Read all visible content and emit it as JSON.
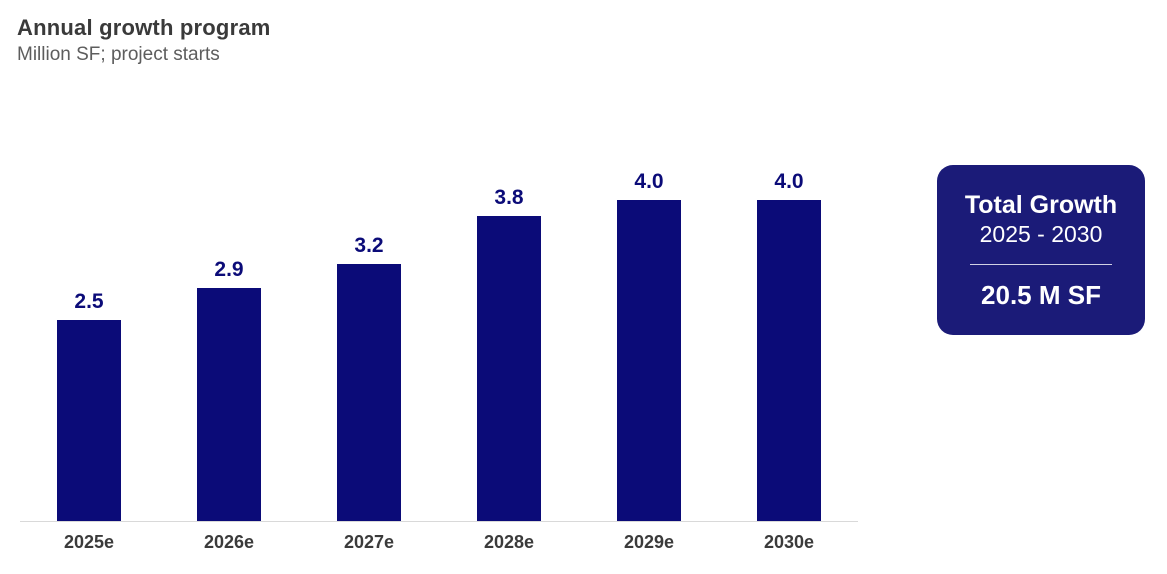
{
  "header": {
    "title": "Annual growth program",
    "subtitle": "Million SF; project starts"
  },
  "chart_data": {
    "type": "bar",
    "title": "Annual growth program",
    "subtitle": "Million SF; project starts",
    "categories": [
      "2025e",
      "2026e",
      "2027e",
      "2028e",
      "2029e",
      "2030e"
    ],
    "values": [
      2.5,
      2.9,
      3.2,
      3.8,
      4.0,
      4.0
    ],
    "value_labels": [
      "2.5",
      "2.9",
      "3.2",
      "3.8",
      "4.0",
      "4.0"
    ],
    "xlabel": "",
    "ylabel": "Million SF (project starts)",
    "ylim": [
      0,
      4.4
    ],
    "grid": false,
    "legend": "none",
    "y_axis_shown": false,
    "bar_color": "#0b0b78",
    "value_label_color": "#0b0b78",
    "tick_label_color": "#3b3b3b",
    "axis_line_color": "#d9d9d9"
  },
  "summary_box": {
    "title": "Total Growth",
    "period": "2025 - 2030",
    "total": "20.5 M SF",
    "background_color": "#1b1b78",
    "text_color": "#ffffff"
  }
}
